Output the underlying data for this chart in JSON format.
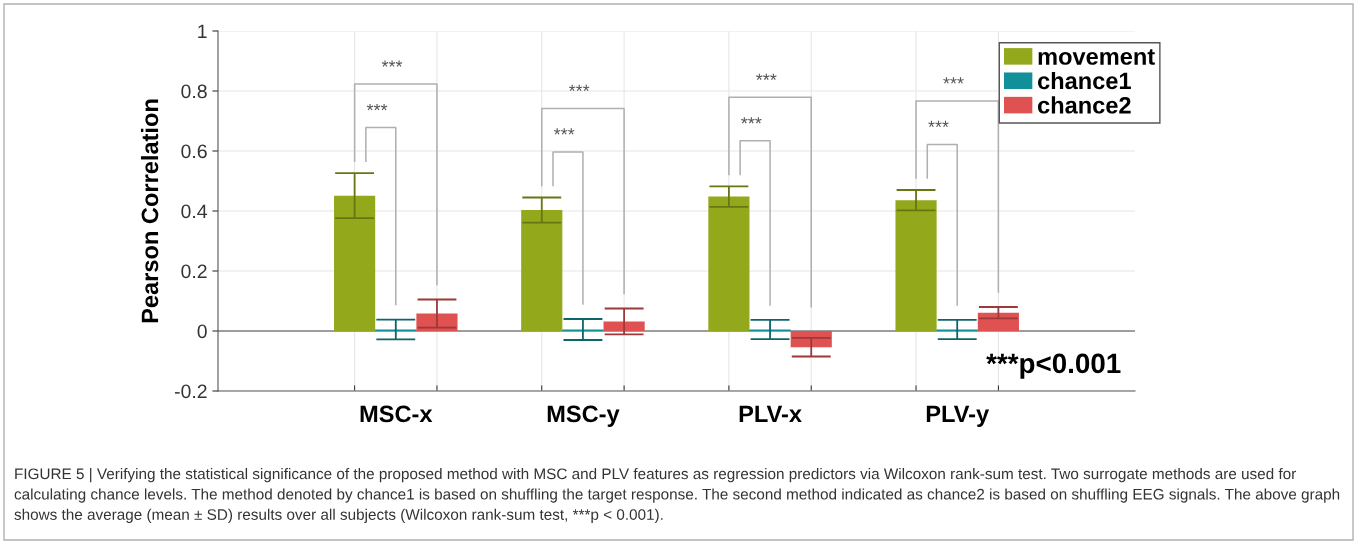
{
  "chart_data": {
    "type": "bar",
    "ylabel": "Pearson Correlation",
    "categories": [
      "MSC-x",
      "MSC-y",
      "PLV-x",
      "PLV-y"
    ],
    "series": [
      {
        "name": "movement",
        "color": "#93a81b",
        "values": [
          0.451,
          0.403,
          0.448,
          0.436
        ],
        "errors": [
          0.075,
          0.042,
          0.034,
          0.034
        ]
      },
      {
        "name": "chance1",
        "color": "#12909a",
        "values": [
          0.005,
          0.005,
          0.005,
          0.005
        ],
        "errors": [
          0.033,
          0.035,
          0.032,
          0.032
        ]
      },
      {
        "name": "chance2",
        "color": "#e05252",
        "values": [
          0.058,
          0.032,
          -0.054,
          0.061
        ],
        "errors": [
          0.047,
          0.043,
          0.031,
          0.019
        ]
      }
    ],
    "ylim": [
      -0.2,
      1
    ],
    "yticks": [
      -0.2,
      0,
      0.2,
      0.4,
      0.6,
      0.8,
      1
    ],
    "grid": true,
    "legend": "top right",
    "ref_lines": [
      {
        "axis": "y",
        "value": 0,
        "color": "#808080"
      }
    ],
    "annotations": [
      "***",
      "***",
      "***",
      "***",
      "***",
      "***",
      "***",
      "***",
      "***p<0.001",
      "FIGURE 5 | Verifying the statistical significance of the proposed method with MSC and PLV features as regression predictors via Wilcoxon rank-sum test. Two surrogate methods are used for calculating chance levels. The method denoted by chance1 is based on shuffling the target response. The second method indicated as chance2 is based on shuffling EEG signals. The above graph shows the average (mean ± SD) results over all subjects (Wilcoxon rank-sum test, ***p < 0.001)."
    ]
  }
}
